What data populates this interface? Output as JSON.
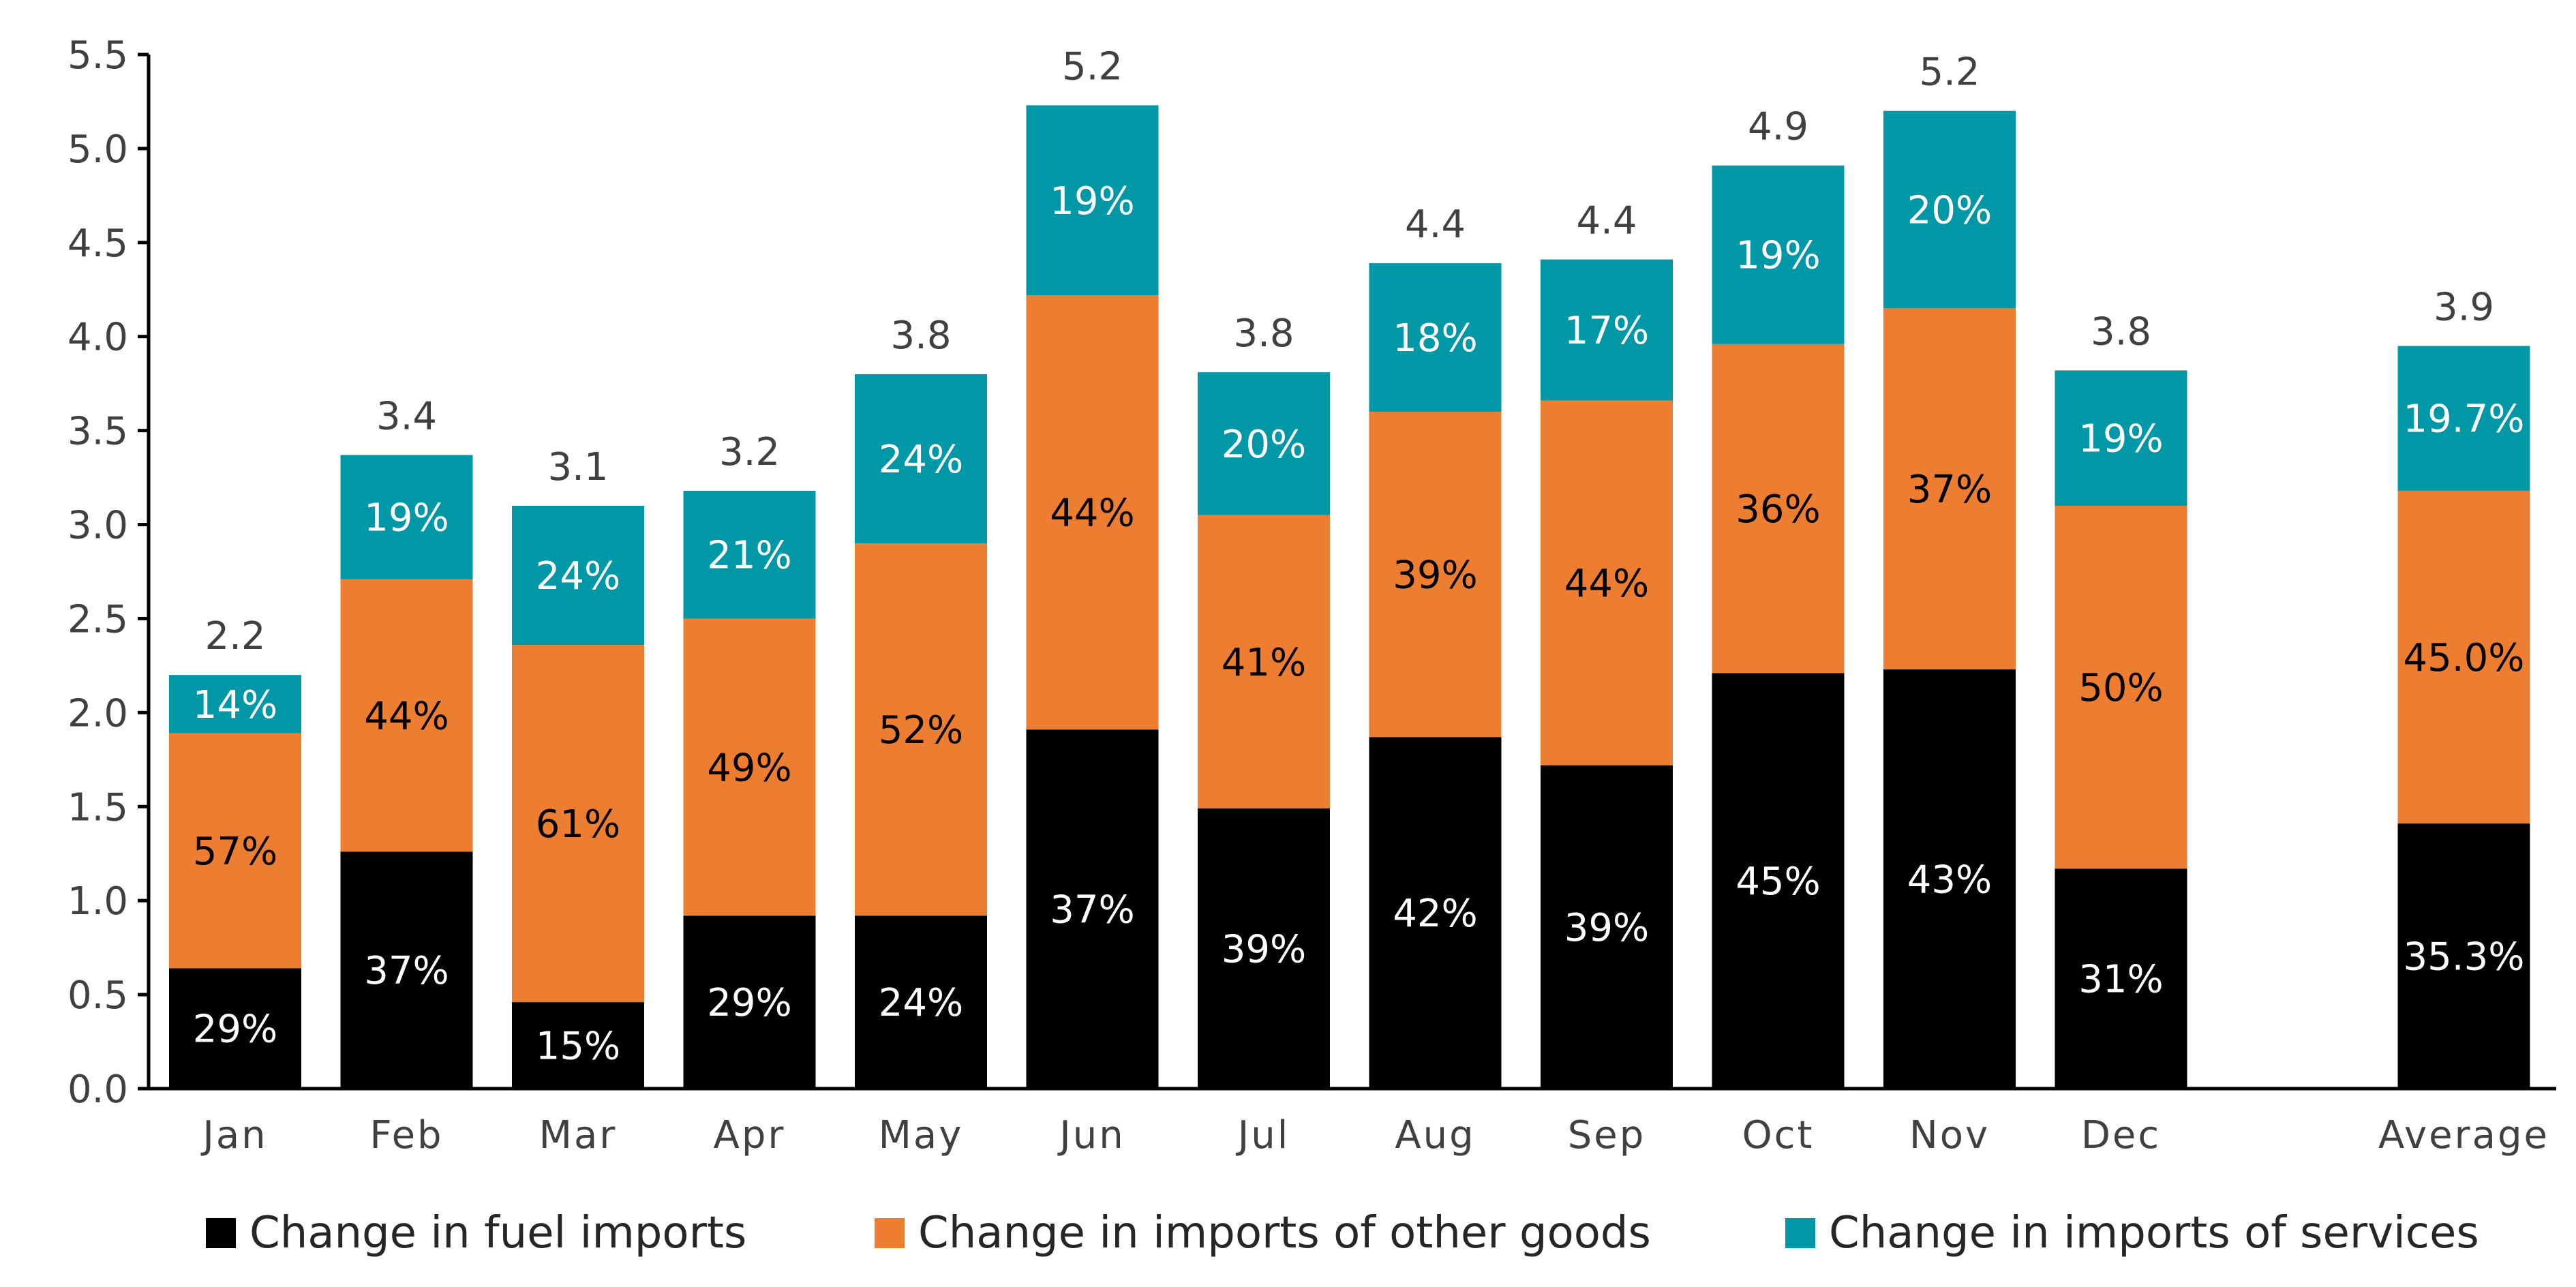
{
  "chart_data": {
    "type": "bar",
    "stacked": true,
    "title": "",
    "xlabel": "",
    "ylabel": "",
    "ylim": [
      0,
      5.5
    ],
    "yticks": [
      0.0,
      0.5,
      1.0,
      1.5,
      2.0,
      2.5,
      3.0,
      3.5,
      4.0,
      4.5,
      5.0,
      5.5
    ],
    "ytick_labels": [
      "0.0",
      "0.5",
      "1.0",
      "1.5",
      "2.0",
      "2.5",
      "3.0",
      "3.5",
      "4.0",
      "4.5",
      "5.0",
      "5.5"
    ],
    "grid": false,
    "legend_position": "bottom",
    "categories": [
      "Jan",
      "Feb",
      "Mar",
      "Apr",
      "May",
      "Jun",
      "Jul",
      "Aug",
      "Sep",
      "Oct",
      "Nov",
      "Dec",
      "Average"
    ],
    "slots": [
      0,
      1,
      2,
      3,
      4,
      5,
      6,
      7,
      8,
      9,
      10,
      11,
      13
    ],
    "totals": [
      2.2,
      3.4,
      3.1,
      3.2,
      3.8,
      5.2,
      3.8,
      4.4,
      4.4,
      4.9,
      5.2,
      3.8,
      3.9
    ],
    "total_labels": [
      "2.2",
      "3.4",
      "3.1",
      "3.2",
      "3.8",
      "5.2",
      "3.8",
      "4.4",
      "4.4",
      "4.9",
      "5.2",
      "3.8",
      "3.9"
    ],
    "series": [
      {
        "name": "Change in fuel imports",
        "color": "#000000",
        "label_color": "#ffffff",
        "values": [
          0.64,
          1.26,
          0.46,
          0.92,
          0.92,
          1.91,
          1.49,
          1.87,
          1.72,
          2.21,
          2.23,
          1.17,
          1.41
        ],
        "labels": [
          "29%",
          "37%",
          "15%",
          "29%",
          "24%",
          "37%",
          "39%",
          "42%",
          "39%",
          "45%",
          "43%",
          "31%",
          "35.3%"
        ]
      },
      {
        "name": "Change in imports of other goods",
        "color": "#ED7D31",
        "label_color": "#000000",
        "values": [
          1.25,
          1.45,
          1.9,
          1.58,
          1.98,
          2.31,
          1.56,
          1.73,
          1.94,
          1.75,
          1.92,
          1.93,
          1.77
        ],
        "labels": [
          "57%",
          "44%",
          "61%",
          "49%",
          "52%",
          "44%",
          "41%",
          "39%",
          "44%",
          "36%",
          "37%",
          "50%",
          "45.0%"
        ]
      },
      {
        "name": "Change in imports of services",
        "color": "#0097A7",
        "label_color": "#ffffff",
        "values": [
          0.31,
          0.66,
          0.74,
          0.68,
          0.9,
          1.01,
          0.76,
          0.79,
          0.75,
          0.95,
          1.05,
          0.72,
          0.77
        ],
        "labels": [
          "14%",
          "19%",
          "24%",
          "21%",
          "24%",
          "19%",
          "20%",
          "18%",
          "17%",
          "19%",
          "20%",
          "19%",
          "19.7%"
        ]
      }
    ]
  }
}
